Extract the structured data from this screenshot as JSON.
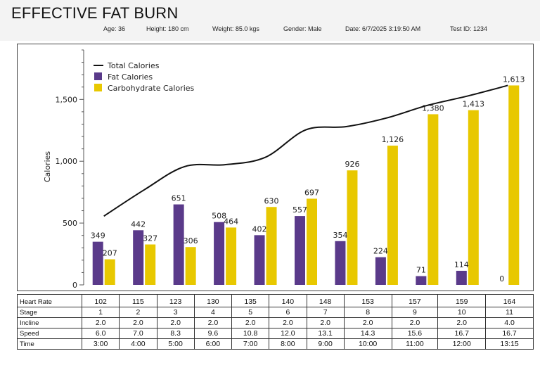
{
  "header": {
    "title": "EFFECTIVE FAT BURN",
    "age": "Age: 36",
    "height": "Height: 180 cm",
    "weight": "Weight: 85.0 kgs",
    "gender": "Gender: Male",
    "date": "Date: 6/7/2025 3:19:50 AM",
    "test_id": "Test ID: 1234"
  },
  "chart_data": {
    "type": "bar",
    "ylabel": "Calories",
    "ylim": [
      0,
      1900
    ],
    "yticks": [
      0,
      500,
      1000,
      1500
    ],
    "ytick_labels": [
      "0",
      "500",
      "1,000",
      "1,500"
    ],
    "legend_position": "top-left",
    "categories": [
      "1",
      "2",
      "3",
      "4",
      "5",
      "6",
      "7",
      "8",
      "9",
      "10",
      "11"
    ],
    "series": [
      {
        "name": "Total Calories",
        "type": "line",
        "color": "#111111",
        "values": [
          556,
          769,
          957,
          972,
          1032,
          1254,
          1280,
          1350,
          1451,
          1527,
          1613
        ]
      },
      {
        "name": "Fat Calories",
        "type": "bar",
        "color": "#5a3a8a",
        "values": [
          349,
          442,
          651,
          508,
          402,
          557,
          354,
          224,
          71,
          114,
          0
        ],
        "labels": [
          "349",
          "442",
          "651",
          "508",
          "402",
          "557",
          "354",
          "224",
          "71",
          "114",
          "0"
        ]
      },
      {
        "name": "Carbohydrate Calories",
        "type": "bar",
        "color": "#e8c800",
        "values": [
          207,
          327,
          306,
          464,
          630,
          697,
          926,
          1126,
          1380,
          1413,
          1613
        ],
        "labels": [
          "207",
          "327",
          "306",
          "464",
          "630",
          "697",
          "926",
          "1,126",
          "1,380",
          "1,413",
          "1,613"
        ]
      }
    ]
  },
  "table": {
    "rows": [
      {
        "label": "Heart Rate",
        "values": [
          "102",
          "115",
          "123",
          "130",
          "135",
          "140",
          "148",
          "153",
          "157",
          "159",
          "164"
        ]
      },
      {
        "label": "Stage",
        "values": [
          "1",
          "2",
          "3",
          "4",
          "5",
          "6",
          "7",
          "8",
          "9",
          "10",
          "11"
        ]
      },
      {
        "label": "Incline",
        "values": [
          "2.0",
          "2.0",
          "2.0",
          "2.0",
          "2.0",
          "2.0",
          "2.0",
          "2.0",
          "2.0",
          "2.0",
          "4.0"
        ]
      },
      {
        "label": "Speed",
        "values": [
          "6.0",
          "7.0",
          "8.3",
          "9.6",
          "10.8",
          "12.0",
          "13.1",
          "14.3",
          "15.6",
          "16.7",
          "16.7"
        ]
      },
      {
        "label": "Time",
        "values": [
          "3:00",
          "4:00",
          "5:00",
          "6:00",
          "7:00",
          "8:00",
          "9:00",
          "10:00",
          "11:00",
          "12:00",
          "13:15"
        ]
      }
    ]
  }
}
